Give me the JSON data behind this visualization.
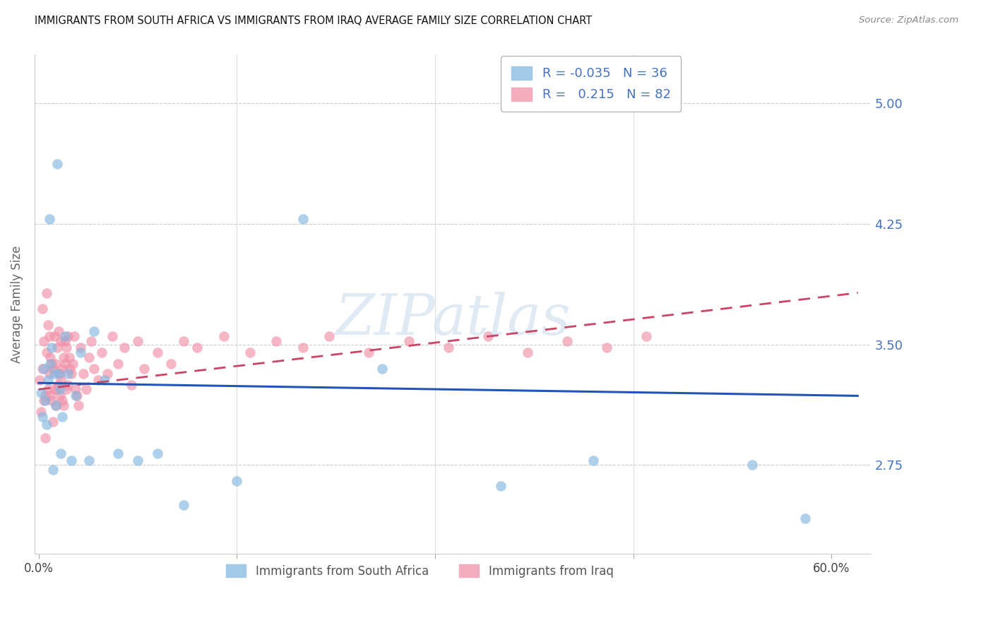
{
  "title": "IMMIGRANTS FROM SOUTH AFRICA VS IMMIGRANTS FROM IRAQ AVERAGE FAMILY SIZE CORRELATION CHART",
  "source": "Source: ZipAtlas.com",
  "ylabel": "Average Family Size",
  "yticks": [
    2.75,
    3.5,
    4.25,
    5.0
  ],
  "ylim": [
    2.2,
    5.3
  ],
  "xlim": [
    -0.003,
    0.63
  ],
  "south_africa_color": "#85b7e0",
  "iraq_color": "#f090a8",
  "trendline_sa_color": "#2255bb",
  "trendline_iraq_color": "#cc4466",
  "watermark_text": "ZIPatlas",
  "sa_trendline_x0": 0.0,
  "sa_trendline_y0": 3.26,
  "sa_trendline_x1": 0.62,
  "sa_trendline_y1": 3.18,
  "iq_trendline_x0": 0.0,
  "iq_trendline_y0": 3.22,
  "iq_trendline_x1": 0.62,
  "iq_trendline_y1": 3.82,
  "legend_title_blue": "#4472c4",
  "legend_box_color": "#ccddee",
  "bottom_legend_color": "#555555",
  "sa_scatter_x": [
    0.002,
    0.003,
    0.004,
    0.005,
    0.006,
    0.007,
    0.008,
    0.009,
    0.01,
    0.011,
    0.012,
    0.013,
    0.014,
    0.015,
    0.016,
    0.017,
    0.018,
    0.02,
    0.022,
    0.025,
    0.028,
    0.032,
    0.038,
    0.042,
    0.05,
    0.06,
    0.075,
    0.09,
    0.11,
    0.15,
    0.2,
    0.26,
    0.35,
    0.42,
    0.54,
    0.58
  ],
  "sa_scatter_y": [
    3.2,
    3.05,
    3.35,
    3.15,
    3.0,
    3.28,
    4.28,
    3.38,
    3.48,
    2.72,
    3.32,
    3.12,
    4.62,
    3.32,
    3.22,
    2.82,
    3.05,
    3.55,
    3.32,
    2.78,
    3.18,
    3.45,
    2.78,
    3.58,
    3.28,
    2.82,
    2.78,
    2.82,
    2.5,
    2.65,
    4.28,
    3.35,
    2.62,
    2.78,
    2.75,
    2.42
  ],
  "iq_scatter_x": [
    0.001,
    0.002,
    0.003,
    0.003,
    0.004,
    0.004,
    0.005,
    0.005,
    0.006,
    0.006,
    0.007,
    0.007,
    0.008,
    0.008,
    0.009,
    0.009,
    0.01,
    0.01,
    0.011,
    0.011,
    0.012,
    0.012,
    0.013,
    0.013,
    0.014,
    0.014,
    0.015,
    0.015,
    0.016,
    0.016,
    0.017,
    0.017,
    0.018,
    0.018,
    0.019,
    0.019,
    0.02,
    0.02,
    0.021,
    0.021,
    0.022,
    0.022,
    0.023,
    0.024,
    0.025,
    0.026,
    0.027,
    0.028,
    0.029,
    0.03,
    0.032,
    0.034,
    0.036,
    0.038,
    0.04,
    0.042,
    0.045,
    0.048,
    0.052,
    0.056,
    0.06,
    0.065,
    0.07,
    0.075,
    0.08,
    0.09,
    0.1,
    0.11,
    0.12,
    0.14,
    0.16,
    0.18,
    0.2,
    0.22,
    0.25,
    0.28,
    0.31,
    0.34,
    0.37,
    0.4,
    0.43,
    0.46
  ],
  "iq_scatter_y": [
    3.28,
    3.08,
    3.72,
    3.35,
    3.52,
    3.15,
    3.18,
    2.92,
    3.82,
    3.45,
    3.62,
    3.22,
    3.32,
    3.55,
    3.18,
    3.42,
    3.38,
    3.15,
    3.02,
    3.35,
    3.55,
    3.22,
    3.38,
    3.12,
    3.48,
    3.22,
    3.25,
    3.58,
    3.32,
    3.18,
    3.52,
    3.28,
    3.35,
    3.15,
    3.12,
    3.42,
    3.38,
    3.52,
    3.48,
    3.22,
    3.55,
    3.25,
    3.42,
    3.35,
    3.32,
    3.38,
    3.55,
    3.22,
    3.18,
    3.12,
    3.48,
    3.32,
    3.22,
    3.42,
    3.52,
    3.35,
    3.28,
    3.45,
    3.32,
    3.55,
    3.38,
    3.48,
    3.25,
    3.52,
    3.35,
    3.45,
    3.38,
    3.52,
    3.48,
    3.55,
    3.45,
    3.52,
    3.48,
    3.55,
    3.45,
    3.52,
    3.48,
    3.55,
    3.45,
    3.52,
    3.48,
    3.55
  ]
}
